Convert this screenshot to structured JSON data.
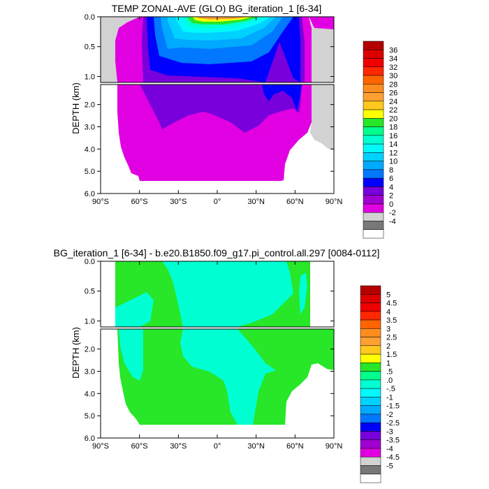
{
  "chart_data": [
    {
      "type": "heatmap",
      "title": "TEMP ZONAL-AVE (GLO) BG_iteration_1 [6-34]",
      "xlabel": "",
      "ylabel": "DEPTH (km)",
      "x_ticks": [
        "90°S",
        "60°S",
        "30°S",
        "0°",
        "30°N",
        "60°N",
        "90°N"
      ],
      "x_values": [
        -90,
        -60,
        -30,
        0,
        30,
        60,
        90
      ],
      "y_ticks_upper": [
        "0.0",
        "0.5",
        "1.0"
      ],
      "y_values_upper": [
        0.0,
        0.5,
        1.0
      ],
      "y_ticks_lower": [
        "2.0",
        "3.0",
        "4.0",
        "5.0",
        "6.0"
      ],
      "y_values_lower": [
        2.0,
        3.0,
        4.0,
        5.0,
        6.0
      ],
      "xlim": [
        -90,
        90
      ],
      "ylim_upper": [
        0,
        1.1
      ],
      "ylim_lower": [
        1.1,
        6.0
      ],
      "colorbar_labels": [
        "36",
        "34",
        "32",
        "30",
        "28",
        "26",
        "24",
        "22",
        "20",
        "18",
        "16",
        "14",
        "12",
        "10",
        "8",
        "6",
        "4",
        "2",
        "0",
        "-2",
        "-4"
      ],
      "colorbar_colors": [
        "#b40000",
        "#dc0000",
        "#f00000",
        "#ff2800",
        "#ff6400",
        "#ff8c1e",
        "#ffa032",
        "#ffc81e",
        "#ffff00",
        "#28e628",
        "#00ff8c",
        "#00ffd2",
        "#00fafa",
        "#00d2ff",
        "#00aaff",
        "#0078ff",
        "#0000ff",
        "#7800dc",
        "#a000d2",
        "#e100e1",
        "#d2d2d2",
        "#787878",
        "#ffffff"
      ]
    },
    {
      "type": "heatmap",
      "title": "BG_iteration_1 [6-34] - b.e20.B1850.f09_g17.pi_control.all.297 [0084-0112]",
      "xlabel": "",
      "ylabel": "DEPTH (km)",
      "x_ticks": [
        "90°S",
        "60°S",
        "30°S",
        "0°",
        "30°N",
        "60°N",
        "90°N"
      ],
      "x_values": [
        -90,
        -60,
        -30,
        0,
        30,
        60,
        90
      ],
      "y_ticks_upper": [
        "0.0",
        "0.5",
        "1.0"
      ],
      "y_values_upper": [
        0.0,
        0.5,
        1.0
      ],
      "y_ticks_lower": [
        "2.0",
        "3.0",
        "4.0",
        "5.0",
        "6.0"
      ],
      "y_values_lower": [
        2.0,
        3.0,
        4.0,
        5.0,
        6.0
      ],
      "xlim": [
        -90,
        90
      ],
      "ylim_upper": [
        0,
        1.1
      ],
      "ylim_lower": [
        1.1,
        6.0
      ],
      "colorbar_labels": [
        "5",
        "4.5",
        "4",
        "3.5",
        "3",
        "2.5",
        "2",
        "1.5",
        "1",
        ".5",
        ".0",
        "-.5",
        "-1",
        "-1.5",
        "-2",
        "-2.5",
        "-3",
        "-3.5",
        "-4",
        "-4.5",
        "-5"
      ],
      "colorbar_colors": [
        "#b40000",
        "#dc0000",
        "#f00000",
        "#ff2800",
        "#ff6400",
        "#ff8c1e",
        "#ffa032",
        "#ffc81e",
        "#ffff00",
        "#28e628",
        "#00ff8c",
        "#00ffd2",
        "#00fafa",
        "#00d2ff",
        "#00aaff",
        "#0078ff",
        "#0000ff",
        "#7800dc",
        "#a000d2",
        "#e100e1",
        "#d2d2d2",
        "#787878",
        "#ffffff"
      ]
    }
  ]
}
